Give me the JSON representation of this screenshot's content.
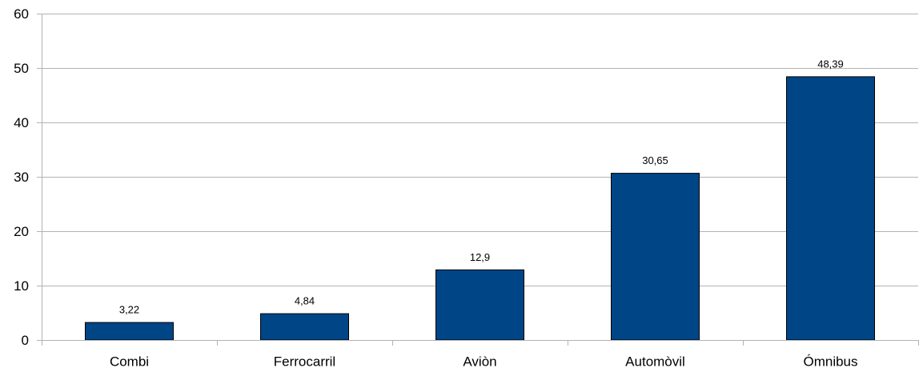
{
  "chart_data": {
    "type": "bar",
    "categories": [
      "Combi",
      "Ferrocarril",
      "Aviòn",
      "Automòvil",
      "Ómnibus"
    ],
    "values": [
      3.22,
      4.84,
      12.9,
      30.65,
      48.39
    ],
    "data_labels": [
      "3,22",
      "4,84",
      "12,9",
      "30,65",
      "48,39"
    ],
    "y_ticks": [
      0,
      10,
      20,
      30,
      40,
      50,
      60
    ],
    "ylim": [
      0,
      60
    ],
    "title": "",
    "xlabel": "",
    "ylabel": "",
    "grid": true,
    "legend": "none",
    "bar_color": "#004586",
    "gridline_color": "#b3b3b3",
    "axis_color": "#b3b3b3"
  }
}
